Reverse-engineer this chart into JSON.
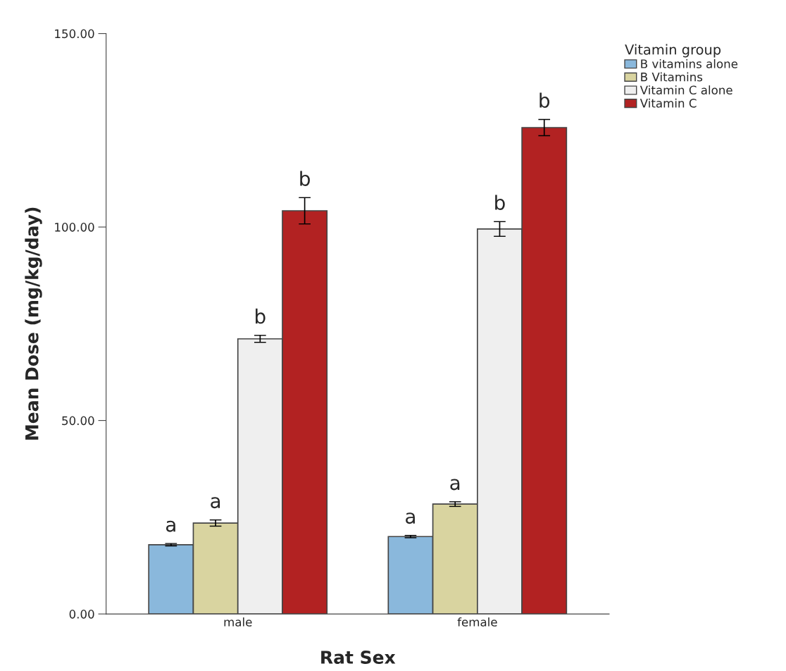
{
  "chart_data": {
    "type": "bar",
    "xlabel": "Rat Sex",
    "ylabel": "Mean Dose (mg/kg/day)",
    "legend_title": "Vitamin group",
    "categories": [
      "male",
      "female"
    ],
    "series": [
      {
        "name": "B vitamins alone",
        "color": "#8ab8dc",
        "values": [
          17.9,
          20.0
        ],
        "errors": [
          0.3,
          0.3
        ]
      },
      {
        "name": "B Vitamins",
        "color": "#d9d4a0",
        "values": [
          23.5,
          28.4
        ],
        "errors": [
          0.8,
          0.6
        ]
      },
      {
        "name": "Vitamin C alone",
        "color": "#efefef",
        "values": [
          71.1,
          99.5
        ],
        "errors": [
          0.9,
          1.9
        ]
      },
      {
        "name": "Vitamin C",
        "color": "#b22222",
        "values": [
          104.2,
          125.7
        ],
        "errors": [
          3.4,
          2.1
        ]
      }
    ],
    "ylim": [
      0,
      150
    ],
    "yticks": [
      {
        "value": 0,
        "label": "0.00"
      },
      {
        "value": 50,
        "label": "50.00"
      },
      {
        "value": 100,
        "label": "100.00"
      },
      {
        "value": 150,
        "label": "150.00"
      }
    ],
    "annotations": [
      "a",
      "a",
      "b",
      "b",
      "a",
      "a",
      "b",
      "b"
    ],
    "grid": false,
    "legend": "top right"
  }
}
